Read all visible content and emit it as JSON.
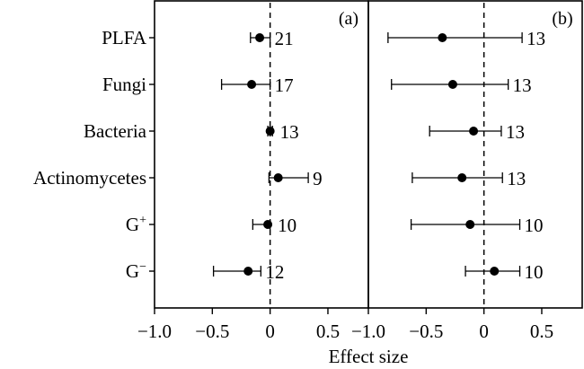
{
  "chart_data": [
    {
      "panel": "(a)",
      "type": "scatter",
      "subtype": "forest-plot",
      "categories": [
        "PLFA",
        "Fungi",
        "Bacteria",
        "Actinomycetes",
        "G+",
        "G−"
      ],
      "means": [
        -0.09,
        -0.16,
        0.0,
        0.07,
        -0.02,
        -0.19
      ],
      "ci_low": [
        -0.17,
        -0.42,
        -0.02,
        -0.01,
        -0.15,
        -0.49
      ],
      "ci_high": [
        0.0,
        0.0,
        0.02,
        0.33,
        0.0,
        -0.08
      ],
      "n": [
        "21",
        "17",
        "13",
        "9",
        "10",
        "12"
      ],
      "xlim": [
        -1.0,
        0.85
      ],
      "xticks": [
        "−1.0",
        "−0.5",
        "0",
        "0.5"
      ],
      "reference_line": 0
    },
    {
      "panel": "(b)",
      "type": "scatter",
      "subtype": "forest-plot",
      "categories": [
        "PLFA",
        "Fungi",
        "Bacteria",
        "Actinomycetes",
        "G+",
        "G−"
      ],
      "means": [
        -0.36,
        -0.27,
        -0.09,
        -0.19,
        -0.12,
        0.09
      ],
      "ci_low": [
        -0.83,
        -0.8,
        -0.47,
        -0.62,
        -0.63,
        -0.16
      ],
      "ci_high": [
        0.33,
        0.21,
        0.15,
        0.16,
        0.31,
        0.31
      ],
      "n": [
        "13",
        "13",
        "13",
        "13",
        "10",
        "10"
      ],
      "xlim": [
        -1.0,
        0.85
      ],
      "xticks": [
        "−1.0",
        "−0.5",
        "0",
        "0.5"
      ],
      "reference_line": 0
    }
  ],
  "row_labels": [
    {
      "main": "PLFA",
      "sup": ""
    },
    {
      "main": "Fungi",
      "sup": ""
    },
    {
      "main": "Bacteria",
      "sup": ""
    },
    {
      "main": "Actinomycetes",
      "sup": ""
    },
    {
      "main": "G",
      "sup": "+"
    },
    {
      "main": "G",
      "sup": "−"
    }
  ],
  "xlabel": "Effect size",
  "colors": {
    "ink": "#000000",
    "background": "#ffffff"
  }
}
